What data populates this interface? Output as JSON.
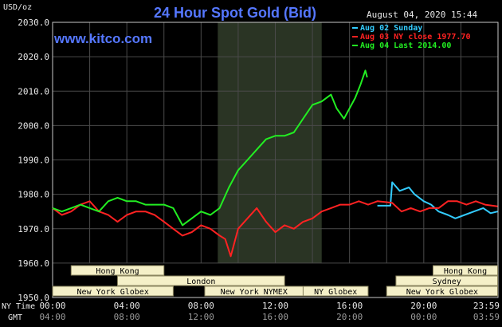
{
  "chart_data": {
    "type": "line",
    "title": "24 Hour Spot Gold (Bid)",
    "ylabel": "USD/oz",
    "timestamp": "August 04, 2020 15:44",
    "watermark": "www.kitco.com",
    "ylim": [
      1950,
      2030
    ],
    "yticks": [
      "2030.0",
      "2020.0",
      "2010.0",
      "2000.0",
      "1990.0",
      "1980.0",
      "1970.0",
      "1960.0",
      "1950.0"
    ],
    "ytick_values": [
      2030,
      2020,
      2010,
      2000,
      1990,
      1980,
      1970,
      1960,
      1950
    ],
    "x_range_hours": [
      0,
      24
    ],
    "xaxis_ny_label": "NY Time",
    "xaxis_gmt_label": "GMT",
    "xticks_ny": [
      "00:00",
      "04:00",
      "08:00",
      "12:00",
      "16:00",
      "20:00",
      "23:59"
    ],
    "xticks_gmt": [
      "04:00",
      "08:00",
      "12:00",
      "16:00",
      "20:00",
      "00:00",
      "03:59"
    ],
    "xtick_hours": [
      0,
      4,
      8,
      12,
      16,
      20,
      23.98
    ],
    "shaded_hours": [
      8.9,
      14.5
    ],
    "legend": [
      {
        "label": "Aug 02 Sunday",
        "color": "#33ccff"
      },
      {
        "label": "Aug 03 NY close 1977.70",
        "color": "#ff2222"
      },
      {
        "label": "Aug 04 Last 2014.00",
        "color": "#22ee22"
      }
    ],
    "sessions": [
      {
        "label": "Hong Kong",
        "start": 1.0,
        "end": 6.0,
        "row": 0
      },
      {
        "label": "London",
        "start": 3.5,
        "end": 12.5,
        "row": 1
      },
      {
        "label": "New York Globex",
        "start": 0.0,
        "end": 6.5,
        "row": 2
      },
      {
        "label": "New York NYMEX",
        "start": 8.2,
        "end": 13.5,
        "row": 2
      },
      {
        "label": "NY Globex",
        "start": 13.5,
        "end": 17.0,
        "row": 2
      },
      {
        "label": "Hong Kong",
        "start": 20.5,
        "end": 23.98,
        "row": 0
      },
      {
        "label": "Sydney",
        "start": 18.5,
        "end": 23.98,
        "row": 1
      },
      {
        "label": "New York Globex",
        "start": 18.0,
        "end": 23.98,
        "row": 2
      }
    ],
    "series": [
      {
        "name": "Aug 02 Sunday",
        "color": "#33ccff",
        "x": [
          17.5,
          18.2,
          18.3,
          18.7,
          19.2,
          19.5,
          20.0,
          20.4,
          20.8,
          21.3,
          21.7,
          22.2,
          22.7,
          23.2,
          23.6,
          23.98
        ],
        "y": [
          1976.7,
          1976.7,
          1983.5,
          1981,
          1982,
          1980,
          1978,
          1977,
          1975,
          1974,
          1973,
          1974,
          1975,
          1976,
          1974.5,
          1975
        ]
      },
      {
        "name": "Aug 03 NY close 1977.70",
        "color": "#ff2222",
        "x": [
          0,
          0.5,
          1.0,
          1.5,
          2.0,
          2.5,
          3.0,
          3.5,
          4.0,
          4.5,
          5.0,
          5.5,
          6.0,
          6.5,
          7.0,
          7.5,
          8.0,
          8.5,
          9.0,
          9.3,
          9.6,
          10.0,
          10.5,
          11.0,
          11.5,
          12.0,
          12.5,
          13.0,
          13.5,
          14.0,
          14.5,
          15.0,
          15.5,
          16.0,
          16.5,
          17.0,
          17.5,
          18.0,
          18.3,
          18.8,
          19.3,
          19.8,
          20.3,
          20.8,
          21.3,
          21.8,
          22.3,
          22.8,
          23.3,
          23.98
        ],
        "y": [
          1976,
          1974,
          1975,
          1977,
          1978,
          1975,
          1974,
          1972,
          1974,
          1975,
          1975,
          1974,
          1972,
          1970,
          1968,
          1969,
          1971,
          1970,
          1968,
          1967,
          1962,
          1970,
          1973,
          1976,
          1972,
          1969,
          1971,
          1970,
          1972,
          1973,
          1975,
          1976,
          1977,
          1977,
          1978,
          1977,
          1978,
          1977.7,
          1977.5,
          1975,
          1976,
          1975,
          1976,
          1976,
          1978,
          1978,
          1977,
          1978,
          1977,
          1976.5
        ]
      },
      {
        "name": "Aug 04 Last 2014.00",
        "color": "#22ee22",
        "x": [
          0,
          0.5,
          1.0,
          1.5,
          2.0,
          2.5,
          3.0,
          3.5,
          4.0,
          4.5,
          5.0,
          5.5,
          6.0,
          6.5,
          7.0,
          7.5,
          8.0,
          8.5,
          9.0,
          9.5,
          10.0,
          10.5,
          11.0,
          11.5,
          12.0,
          12.5,
          13.0,
          13.5,
          14.0,
          14.5,
          15.0,
          15.3,
          15.7,
          16.0,
          16.3,
          16.6,
          16.85,
          16.95
        ],
        "y": [
          1976,
          1975,
          1976,
          1977,
          1976,
          1975,
          1978,
          1979,
          1978,
          1978,
          1977,
          1977,
          1977,
          1976,
          1971,
          1973,
          1975,
          1974,
          1976,
          1982,
          1987,
          1990,
          1993,
          1996,
          1997,
          1997,
          1998,
          2002,
          2006,
          2007,
          2009,
          2005,
          2002,
          2005,
          2008,
          2012,
          2016,
          2014
        ]
      }
    ]
  }
}
